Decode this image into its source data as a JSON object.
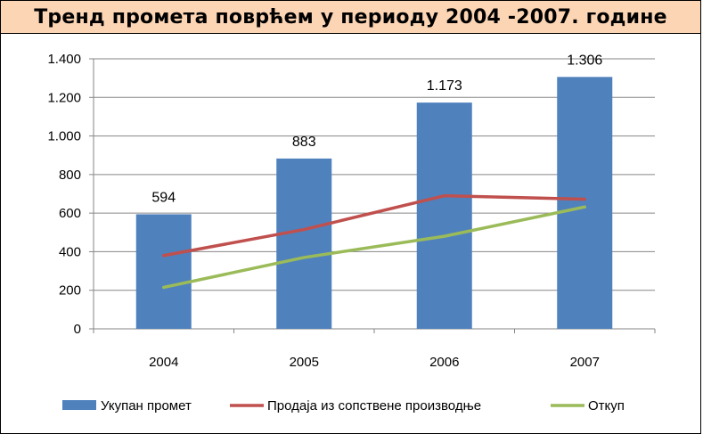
{
  "title": "Тренд промета поврћем у периоду 2004 -2007. године",
  "colors": {
    "title_bg": "#fcd5b4",
    "bar": "#4f81bd",
    "line_sales": "#c0504d",
    "line_purchase": "#9bbb59",
    "grid": "#868686"
  },
  "chart_data": {
    "type": "bar",
    "categories": [
      "2004",
      "2005",
      "2006",
      "2007"
    ],
    "series": [
      {
        "name": "Укупан промет",
        "type": "bar",
        "values": [
          594,
          883,
          1173,
          1306
        ],
        "labels": [
          "594",
          "883",
          "1.173",
          "1.306"
        ]
      },
      {
        "name": "Продаја из сопствене производње",
        "type": "line",
        "values": [
          380,
          515,
          690,
          672
        ]
      },
      {
        "name": "Откуп",
        "type": "line",
        "values": [
          215,
          370,
          480,
          632
        ]
      }
    ],
    "ylim": [
      0,
      1400
    ],
    "yticks": [
      0,
      200,
      400,
      600,
      800,
      1000,
      1200,
      1400
    ],
    "ytick_labels": [
      "0",
      "200",
      "400",
      "600",
      "800",
      "1.000",
      "1.200",
      "1.400"
    ],
    "grid": true,
    "legend_position": "bottom"
  }
}
